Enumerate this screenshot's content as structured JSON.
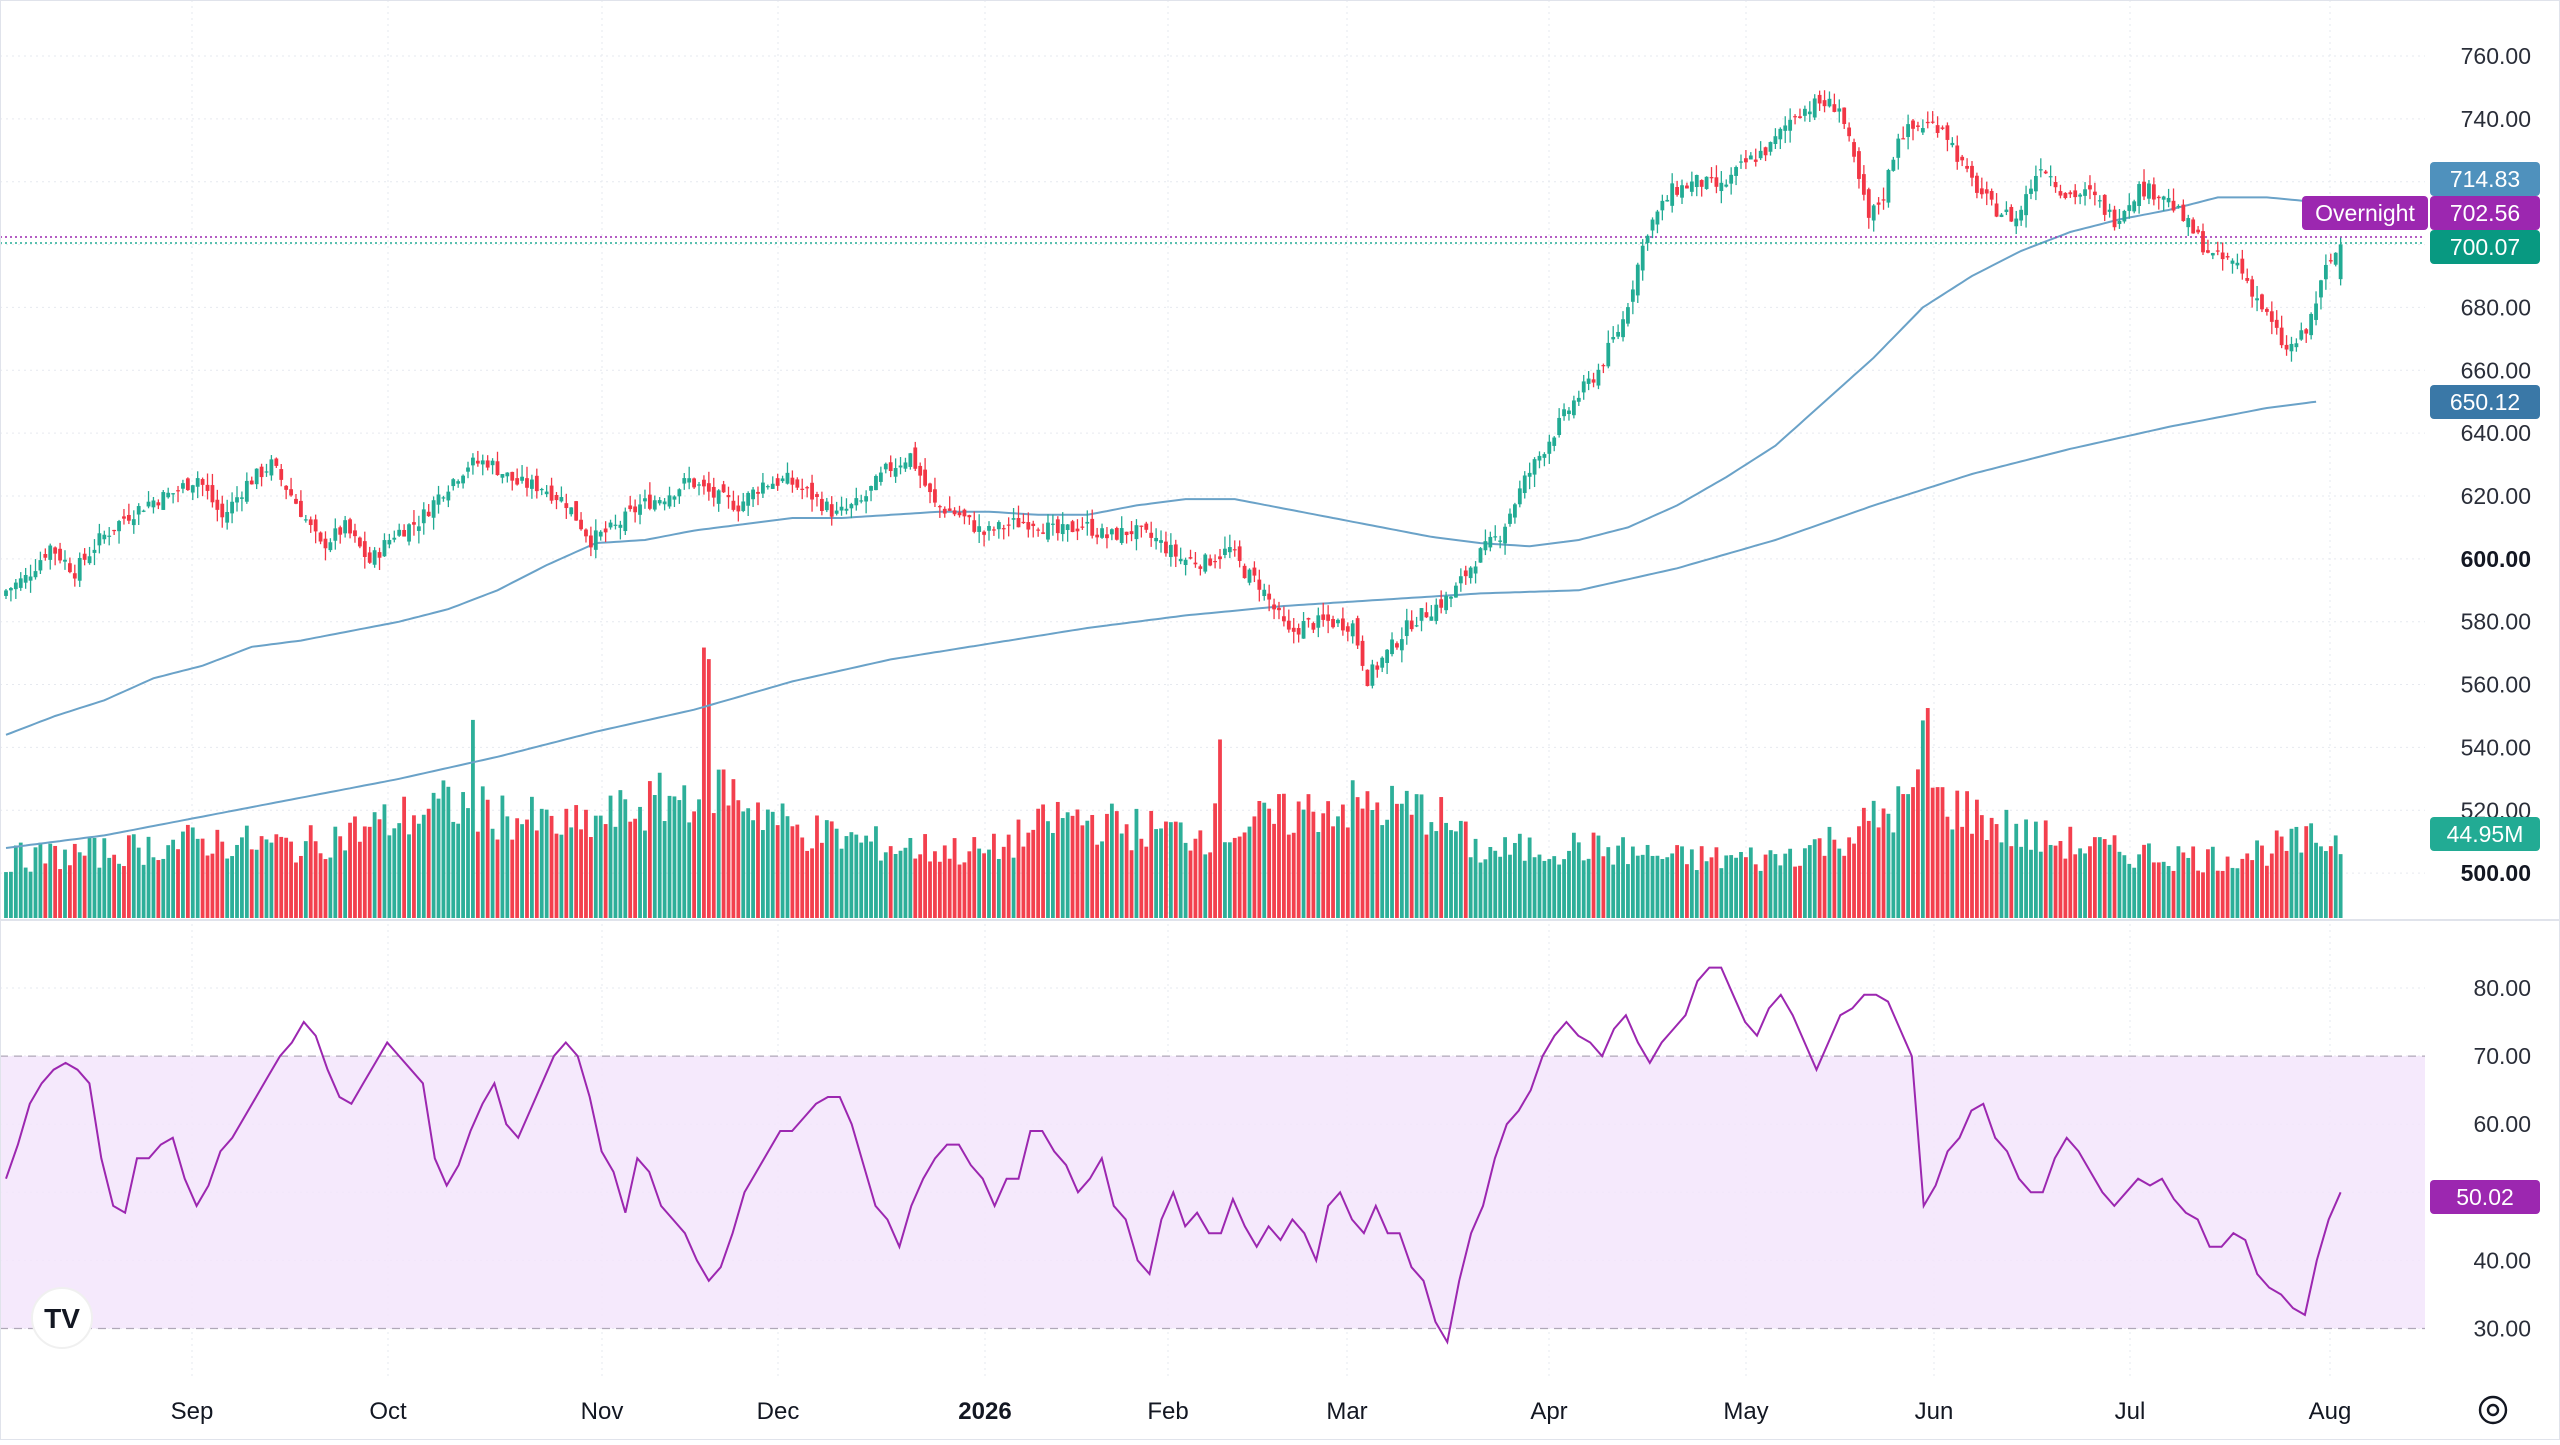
{
  "chart_data": [
    {
      "type": "candlestick",
      "y_axis_ticks": [
        "760.00",
        "740.00",
        "720.00",
        "700.00",
        "680.00",
        "660.00",
        "640.00",
        "620.00",
        "600.00",
        "580.00",
        "560.00",
        "540.00",
        "520.00",
        "500.00"
      ],
      "ylim": [
        490,
        767
      ],
      "x_axis_labels": [
        "Sep",
        "Oct",
        "Nov",
        "Dec",
        "2026",
        "Feb",
        "Mar",
        "Apr",
        "May",
        "Jun",
        "Jul",
        "Aug"
      ],
      "price_badges": {
        "ma50": "714.83",
        "overnight_label": "Overnight",
        "overnight_price": "702.56",
        "last_price": "700.07",
        "ma200": "650.12",
        "volume": "44.95M"
      },
      "colors": {
        "up": "#22ab94",
        "down": "#f23645",
        "ma": "#6aa2c8",
        "overnight": "#9c27b0"
      },
      "price_key_points": [
        [
          0,
          590
        ],
        [
          4,
          594
        ],
        [
          9,
          604
        ],
        [
          14,
          596
        ],
        [
          19,
          606
        ],
        [
          24,
          613
        ],
        [
          29,
          618
        ],
        [
          34,
          621
        ],
        [
          39,
          626
        ],
        [
          44,
          613
        ],
        [
          49,
          624
        ],
        [
          54,
          630
        ],
        [
          59,
          618
        ],
        [
          64,
          604
        ],
        [
          69,
          610
        ],
        [
          74,
          599
        ],
        [
          79,
          608
        ],
        [
          84,
          612
        ],
        [
          89,
          622
        ],
        [
          94,
          630
        ],
        [
          98,
          631
        ],
        [
          104,
          624
        ],
        [
          109,
          623
        ],
        [
          114,
          618
        ],
        [
          119,
          606
        ],
        [
          124,
          610
        ],
        [
          129,
          617
        ],
        [
          134,
          620
        ],
        [
          139,
          625
        ],
        [
          144,
          620
        ],
        [
          149,
          617
        ],
        [
          154,
          624
        ],
        [
          159,
          625
        ],
        [
          164,
          620
        ],
        [
          169,
          614
        ],
        [
          174,
          618
        ],
        [
          179,
          628
        ],
        [
          184,
          633
        ],
        [
          189,
          617
        ],
        [
          194,
          614
        ],
        [
          199,
          608
        ],
        [
          204,
          611
        ],
        [
          209,
          612
        ],
        [
          214,
          608
        ],
        [
          219,
          611
        ],
        [
          224,
          607
        ],
        [
          229,
          609
        ],
        [
          234,
          606
        ],
        [
          239,
          600
        ],
        [
          244,
          599
        ],
        [
          249,
          603
        ],
        [
          252,
          596
        ],
        [
          255,
          592
        ],
        [
          258,
          584
        ],
        [
          261,
          576
        ],
        [
          264,
          579
        ],
        [
          269,
          580
        ],
        [
          274,
          579
        ],
        [
          277,
          562
        ],
        [
          279,
          566
        ],
        [
          282,
          572
        ],
        [
          286,
          580
        ],
        [
          290,
          584
        ],
        [
          294,
          588
        ],
        [
          299,
          600
        ],
        [
          304,
          608
        ],
        [
          309,
          625
        ],
        [
          314,
          638
        ],
        [
          319,
          650
        ],
        [
          324,
          660
        ],
        [
          329,
          676
        ],
        [
          334,
          705
        ],
        [
          339,
          717
        ],
        [
          344,
          720
        ],
        [
          349,
          718
        ],
        [
          354,
          726
        ],
        [
          359,
          731
        ],
        [
          364,
          742
        ],
        [
          369,
          745
        ],
        [
          373,
          744
        ],
        [
          376,
          726
        ],
        [
          379,
          708
        ],
        [
          382,
          716
        ],
        [
          385,
          735
        ],
        [
          390,
          738
        ],
        [
          394,
          738
        ],
        [
          399,
          722
        ],
        [
          404,
          712
        ],
        [
          409,
          708
        ],
        [
          414,
          726
        ],
        [
          419,
          716
        ],
        [
          424,
          716
        ],
        [
          429,
          708
        ],
        [
          434,
          718
        ],
        [
          439,
          716
        ],
        [
          444,
          706
        ],
        [
          449,
          696
        ],
        [
          454,
          694
        ],
        [
          459,
          680
        ],
        [
          464,
          666
        ],
        [
          468,
          672
        ],
        [
          472,
          692
        ],
        [
          475,
          700
        ]
      ],
      "ma50_key_points": [
        [
          0,
          544
        ],
        [
          10,
          550
        ],
        [
          20,
          555
        ],
        [
          30,
          562
        ],
        [
          40,
          566
        ],
        [
          50,
          572
        ],
        [
          60,
          574
        ],
        [
          70,
          577
        ],
        [
          80,
          580
        ],
        [
          90,
          584
        ],
        [
          100,
          590
        ],
        [
          110,
          598
        ],
        [
          120,
          605
        ],
        [
          130,
          606
        ],
        [
          140,
          609
        ],
        [
          150,
          611
        ],
        [
          160,
          613
        ],
        [
          170,
          613
        ],
        [
          180,
          614
        ],
        [
          190,
          615
        ],
        [
          200,
          615
        ],
        [
          210,
          614
        ],
        [
          220,
          614
        ],
        [
          230,
          617
        ],
        [
          240,
          619
        ],
        [
          250,
          619
        ],
        [
          260,
          616
        ],
        [
          270,
          613
        ],
        [
          280,
          610
        ],
        [
          290,
          607
        ],
        [
          300,
          605
        ],
        [
          310,
          604
        ],
        [
          320,
          606
        ],
        [
          330,
          610
        ],
        [
          340,
          617
        ],
        [
          350,
          626
        ],
        [
          360,
          636
        ],
        [
          370,
          650
        ],
        [
          380,
          664
        ],
        [
          390,
          680
        ],
        [
          400,
          690
        ],
        [
          410,
          698
        ],
        [
          420,
          704
        ],
        [
          430,
          708
        ],
        [
          440,
          711
        ],
        [
          450,
          715
        ],
        [
          460,
          715
        ],
        [
          467,
          714
        ],
        [
          470,
          713
        ]
      ],
      "ma200_key_points": [
        [
          0,
          508
        ],
        [
          20,
          512
        ],
        [
          40,
          518
        ],
        [
          60,
          524
        ],
        [
          80,
          530
        ],
        [
          100,
          537
        ],
        [
          120,
          545
        ],
        [
          140,
          552
        ],
        [
          160,
          561
        ],
        [
          180,
          568
        ],
        [
          200,
          573
        ],
        [
          220,
          578
        ],
        [
          240,
          582
        ],
        [
          260,
          585
        ],
        [
          280,
          587
        ],
        [
          300,
          589
        ],
        [
          320,
          590
        ],
        [
          340,
          597
        ],
        [
          360,
          606
        ],
        [
          380,
          617
        ],
        [
          400,
          627
        ],
        [
          420,
          635
        ],
        [
          440,
          642
        ],
        [
          460,
          648
        ],
        [
          470,
          650
        ]
      ],
      "volume_key_points": [
        [
          0,
          20
        ],
        [
          20,
          22
        ],
        [
          40,
          26
        ],
        [
          60,
          24
        ],
        [
          90,
          38
        ],
        [
          115,
          30
        ],
        [
          145,
          45
        ],
        [
          160,
          30
        ],
        [
          180,
          24
        ],
        [
          200,
          22
        ],
        [
          215,
          34
        ],
        [
          230,
          30
        ],
        [
          245,
          28
        ],
        [
          260,
          34
        ],
        [
          270,
          38
        ],
        [
          290,
          36
        ],
        [
          300,
          22
        ],
        [
          320,
          24
        ],
        [
          340,
          20
        ],
        [
          360,
          20
        ],
        [
          375,
          28
        ],
        [
          390,
          42
        ],
        [
          410,
          28
        ],
        [
          430,
          22
        ],
        [
          450,
          20
        ],
        [
          470,
          26
        ]
      ]
    },
    {
      "type": "line",
      "name": "RSI",
      "y_axis_ticks": [
        "80.00",
        "70.00",
        "60.00",
        "50.00",
        "40.00",
        "30.00"
      ],
      "ylim": [
        27.5,
        84
      ],
      "overbought": 70,
      "oversold": 30,
      "last_value_badge": "50.02",
      "values": [
        52,
        57,
        63,
        66,
        68,
        69,
        68,
        66,
        55,
        48,
        47,
        55,
        55,
        57,
        58,
        52,
        48,
        51,
        56,
        58,
        61,
        64,
        67,
        70,
        72,
        75,
        73,
        68,
        64,
        63,
        66,
        69,
        72,
        70,
        68,
        66,
        55,
        51,
        54,
        59,
        63,
        66,
        60,
        58,
        62,
        66,
        70,
        72,
        70,
        64,
        56,
        53,
        47,
        55,
        53,
        48,
        46,
        44,
        40,
        37,
        39,
        44,
        50,
        53,
        56,
        59,
        59,
        61,
        63,
        64,
        64,
        60,
        54,
        48,
        46,
        42,
        48,
        52,
        55,
        57,
        57,
        54,
        52,
        48,
        52,
        52,
        59,
        59,
        56,
        54,
        50,
        52,
        55,
        48,
        46,
        40,
        38,
        46,
        50,
        45,
        47,
        44,
        44,
        49,
        45,
        42,
        45,
        43,
        46,
        44,
        40,
        48,
        50,
        46,
        44,
        48,
        44,
        44,
        39,
        37,
        31,
        28,
        37,
        44,
        48,
        55,
        60,
        62,
        65,
        70,
        73,
        75,
        73,
        72,
        70,
        74,
        76,
        72,
        69,
        72,
        74,
        76,
        81,
        83,
        83,
        79,
        75,
        73,
        77,
        79,
        76,
        72,
        68,
        72,
        76,
        77,
        79,
        79,
        78,
        74,
        70,
        48,
        51,
        56,
        58,
        62,
        63,
        58,
        56,
        52,
        50,
        50,
        55,
        58,
        56,
        53,
        50,
        48,
        50,
        52,
        51,
        52,
        49,
        47,
        46,
        42,
        42,
        44,
        43,
        38,
        36,
        35,
        33,
        32,
        40,
        46,
        50
      ]
    }
  ],
  "branding": {
    "logo_text": "TV"
  },
  "settings_icon": "gear-icon"
}
